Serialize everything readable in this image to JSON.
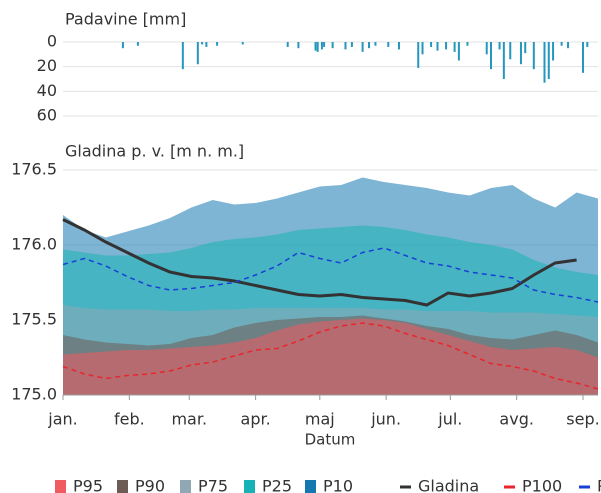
{
  "chart_data": [
    {
      "type": "bar",
      "title": "Padavine [mm]",
      "color": "#2596be",
      "inverted": true,
      "x": [
        28,
        35,
        56,
        63,
        65,
        67,
        72,
        84,
        105,
        110,
        118,
        119,
        121,
        122,
        126,
        132,
        135,
        140,
        143,
        146,
        152,
        157,
        166,
        168,
        172,
        175,
        179,
        183,
        185,
        189,
        198,
        200,
        204,
        206,
        209,
        214,
        216,
        220,
        225,
        227,
        229,
        233,
        236,
        243,
        245
      ],
      "values": [
        5,
        3,
        22,
        18,
        2,
        4,
        3,
        2,
        4,
        5,
        7,
        8,
        6,
        4,
        5,
        6,
        4,
        8,
        5,
        3,
        4,
        6,
        21,
        10,
        4,
        7,
        6,
        8,
        15,
        3,
        10,
        22,
        6,
        30,
        14,
        18,
        9,
        22,
        33,
        30,
        15,
        3,
        5,
        25,
        4
      ],
      "xlim": [
        0,
        250
      ],
      "ylim": [
        0,
        60
      ],
      "yticks": [
        0,
        20,
        40,
        60
      ],
      "grid": true
    },
    {
      "type": "line",
      "title": "Gladina p. v. [m n. m.]",
      "xlabel": "Datum",
      "grid": true,
      "fill_opacity": 0.55,
      "x": [
        0,
        10,
        20,
        30,
        40,
        50,
        60,
        70,
        80,
        90,
        100,
        110,
        120,
        130,
        140,
        150,
        160,
        170,
        180,
        190,
        200,
        210,
        220,
        230,
        240,
        250
      ],
      "xlim": [
        0,
        250
      ],
      "xticks": [
        {
          "value": 0,
          "label": "jan."
        },
        {
          "value": 31,
          "label": "feb."
        },
        {
          "value": 59,
          "label": "mar."
        },
        {
          "value": 90,
          "label": "apr."
        },
        {
          "value": 120,
          "label": "maj"
        },
        {
          "value": 151,
          "label": "jun."
        },
        {
          "value": 181,
          "label": "jul."
        },
        {
          "value": 212,
          "label": "avg."
        },
        {
          "value": 243,
          "label": "sep."
        }
      ],
      "ylim": [
        175.0,
        176.5
      ],
      "yticks": [
        {
          "value": 175.0,
          "label": "175.0"
        },
        175.5,
        {
          "value": 176.0,
          "label": "176.0"
        },
        176.5
      ],
      "series": [
        {
          "name": "P95",
          "color": "#f05a61",
          "fill": true,
          "values": [
            175.27,
            175.28,
            175.29,
            175.3,
            175.3,
            175.31,
            175.32,
            175.33,
            175.35,
            175.38,
            175.43,
            175.47,
            175.49,
            175.5,
            175.51,
            175.5,
            175.48,
            175.44,
            175.4,
            175.36,
            175.32,
            175.3,
            175.31,
            175.32,
            175.3,
            175.25
          ]
        },
        {
          "name": "P90",
          "color": "#6d5b55",
          "fill": true,
          "values": [
            175.4,
            175.37,
            175.35,
            175.34,
            175.33,
            175.34,
            175.38,
            175.4,
            175.45,
            175.48,
            175.5,
            175.51,
            175.52,
            175.52,
            175.53,
            175.51,
            175.49,
            175.46,
            175.44,
            175.4,
            175.38,
            175.37,
            175.4,
            175.43,
            175.4,
            175.35
          ]
        },
        {
          "name": "P75",
          "color": "#8fa8b4",
          "fill": true,
          "values": [
            175.6,
            175.58,
            175.57,
            175.57,
            175.57,
            175.56,
            175.56,
            175.57,
            175.57,
            175.58,
            175.58,
            175.58,
            175.58,
            175.58,
            175.58,
            175.57,
            175.57,
            175.56,
            175.56,
            175.56,
            175.55,
            175.55,
            175.55,
            175.54,
            175.53,
            175.52
          ]
        },
        {
          "name": "P25",
          "color": "#17b2b5",
          "fill": true,
          "values": [
            175.97,
            175.95,
            175.93,
            175.93,
            175.94,
            175.95,
            175.98,
            176.02,
            176.04,
            176.05,
            176.07,
            176.1,
            176.11,
            176.12,
            176.13,
            176.12,
            176.1,
            176.07,
            176.05,
            176.02,
            176.0,
            175.97,
            175.9,
            175.85,
            175.82,
            175.8
          ]
        },
        {
          "name": "P10",
          "color": "#1578b0",
          "fill": true,
          "values": [
            176.2,
            176.1,
            176.05,
            176.09,
            176.13,
            176.18,
            176.25,
            176.3,
            176.27,
            176.28,
            176.31,
            176.35,
            176.39,
            176.4,
            176.45,
            176.42,
            176.4,
            176.38,
            176.35,
            176.33,
            176.38,
            176.4,
            176.31,
            176.25,
            176.35,
            176.31
          ]
        },
        {
          "name": "Gladina",
          "color": "#333333",
          "width": 3,
          "values": [
            176.17,
            176.1,
            176.02,
            175.95,
            175.88,
            175.82,
            175.79,
            175.78,
            175.76,
            175.73,
            175.7,
            175.67,
            175.66,
            175.67,
            175.65,
            175.64,
            175.63,
            175.6,
            175.68,
            175.66,
            175.68,
            175.71,
            175.8,
            175.88,
            175.9,
            null
          ]
        },
        {
          "name": "P100",
          "color": "#e8262c",
          "dash": true,
          "values": [
            175.19,
            175.14,
            175.11,
            175.13,
            175.14,
            175.16,
            175.2,
            175.22,
            175.26,
            175.3,
            175.31,
            175.36,
            175.42,
            175.46,
            175.48,
            175.46,
            175.41,
            175.37,
            175.33,
            175.27,
            175.21,
            175.19,
            175.16,
            175.11,
            175.08,
            175.04
          ]
        },
        {
          "name": "P",
          "color": "#1a3fd6",
          "dash": true,
          "values": [
            175.87,
            175.91,
            175.86,
            175.79,
            175.73,
            175.7,
            175.71,
            175.73,
            175.75,
            175.8,
            175.86,
            175.95,
            175.91,
            175.88,
            175.95,
            175.98,
            175.93,
            175.88,
            175.86,
            175.82,
            175.8,
            175.78,
            175.7,
            175.67,
            175.65,
            175.62
          ]
        }
      ]
    }
  ]
}
